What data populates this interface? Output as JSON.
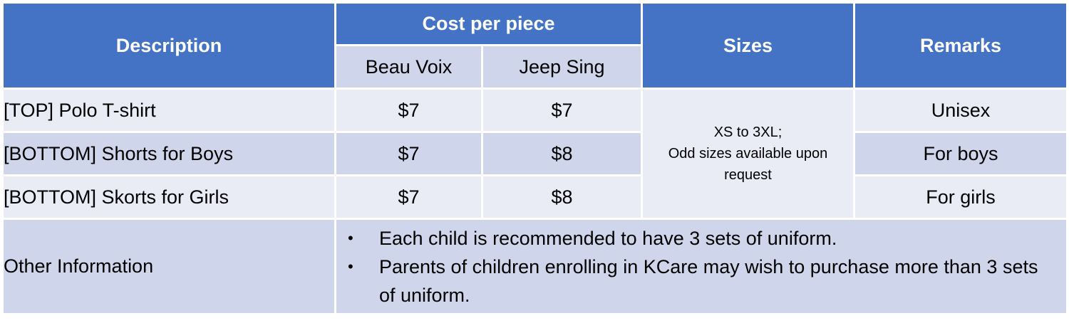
{
  "header": {
    "description": "Description",
    "cost_per_piece": "Cost per piece",
    "supplier_1": "Beau Voix",
    "supplier_2": "Jeep Sing",
    "sizes": "Sizes",
    "remarks": "Remarks"
  },
  "rows": [
    {
      "description": "[TOP] Polo T-shirt",
      "beau_voix": "$7",
      "jeep_sing": "$7",
      "remarks": "Unisex"
    },
    {
      "description": "[BOTTOM] Shorts for Boys",
      "beau_voix": "$7",
      "jeep_sing": "$8",
      "remarks": "For boys"
    },
    {
      "description": "[BOTTOM] Skorts for Girls",
      "beau_voix": "$7",
      "jeep_sing": "$8",
      "remarks": "For girls"
    }
  ],
  "sizes_note": {
    "line1": "XS to 3XL;",
    "line2": "Odd sizes available upon request"
  },
  "other_info": {
    "label": "Other Information",
    "bullet_glyph": "•",
    "bullets": [
      "Each child is recommended to have 3 sets of uniform.",
      "Parents of children enrolling in KCare may wish to purchase more than 3 sets of uniform."
    ]
  },
  "colors": {
    "header_blue": "#4472c4",
    "row_light": "#e9ebf5",
    "row_dark": "#cfd5ea"
  }
}
